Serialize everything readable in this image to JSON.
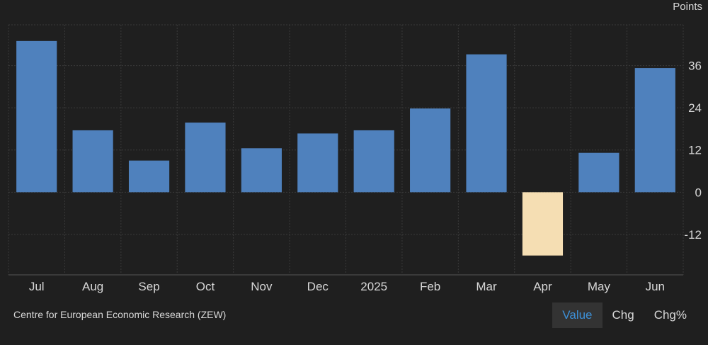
{
  "unit_label": "Points",
  "source": "Centre for European Economic Research (ZEW)",
  "toggles": [
    {
      "label": "Value",
      "active": true
    },
    {
      "label": "Chg",
      "active": false
    },
    {
      "label": "Chg%",
      "active": false
    }
  ],
  "colors": {
    "positive_bar": "#4f81bd",
    "negative_bar": "#f5deb3",
    "grid": "#3a3a3a",
    "text": "#d8d8d8"
  },
  "chart_data": {
    "type": "bar",
    "categories": [
      "Jul",
      "Aug",
      "Sep",
      "Oct",
      "Nov",
      "Dec",
      "2025",
      "Feb",
      "Mar",
      "Apr",
      "May",
      "Jun"
    ],
    "values": [
      43.0,
      17.6,
      9.0,
      19.8,
      12.5,
      16.7,
      17.6,
      23.8,
      39.2,
      -18.0,
      11.2,
      35.3
    ],
    "ylim": [
      -23.5,
      47.6
    ],
    "yticks": [
      -12,
      0,
      12,
      24,
      36
    ],
    "ylabel": "Points",
    "grid": true
  }
}
